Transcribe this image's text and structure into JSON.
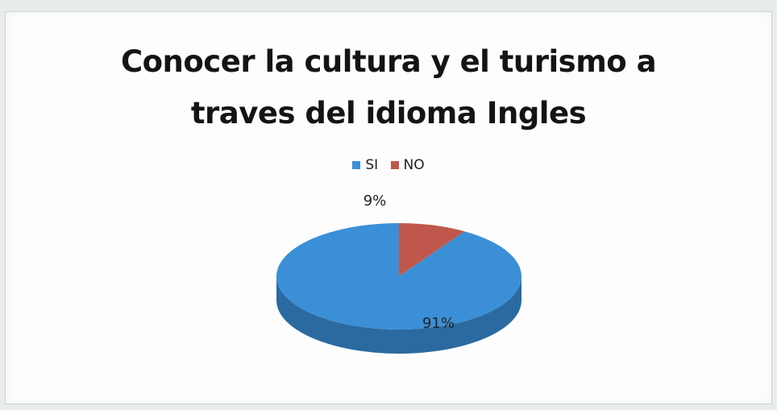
{
  "colors": {
    "si": "#3b8fd6",
    "si_side": "#2a6aa0",
    "no": "#c0574c",
    "no_side": "#8e3d35"
  },
  "chart_data": {
    "type": "pie",
    "title_lines": [
      "Conocer la cultura y el turismo  a",
      "traves del idioma Ingles"
    ],
    "legend_position": "top",
    "slices": [
      {
        "label": "SI",
        "value": 91,
        "display": "91%"
      },
      {
        "label": "NO",
        "value": 9,
        "display": "9%"
      }
    ]
  }
}
